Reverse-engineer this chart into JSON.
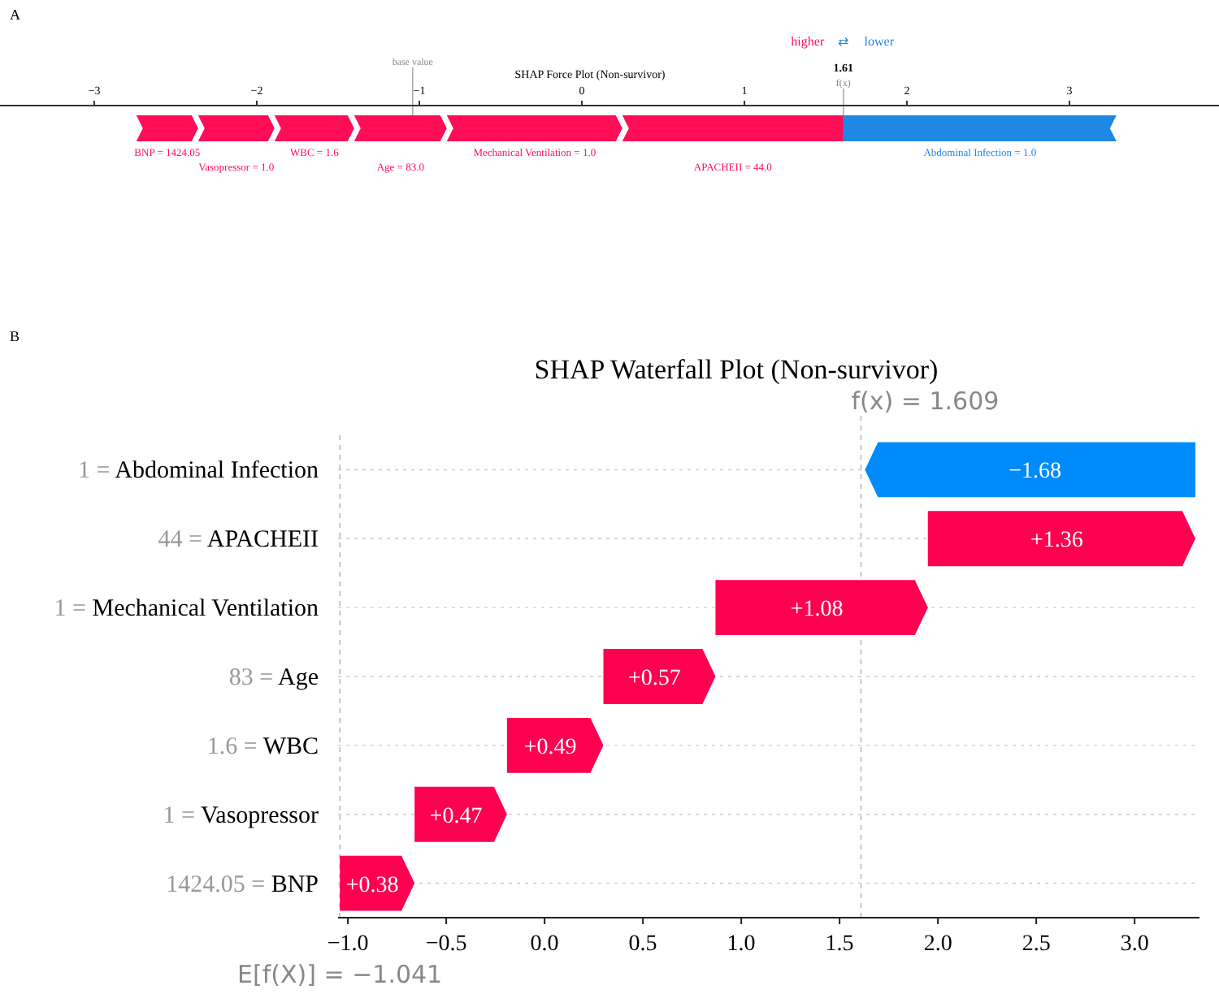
{
  "chart_data": [
    {
      "type": "bar",
      "orientation": "horizontal",
      "title": "SHAP Force Plot (Non-survivor)",
      "categories": [
        null
      ],
      "xlim": [
        -3.58,
        3.92
      ],
      "xticks": [
        {
          "value": -3,
          "label": "−3"
        },
        {
          "value": -2,
          "label": "−2"
        },
        {
          "value": -1,
          "label": "−1"
        },
        0,
        1,
        2,
        3
      ],
      "series": [
        {
          "name": "BNP = 1424.05",
          "color": "#ff0d57",
          "values": [
            0.38
          ],
          "base": [
            -2.741
          ]
        },
        {
          "name": "Vasopressor = 1.0",
          "color": "#ff0d57",
          "values": [
            0.47
          ],
          "base": [
            -2.361
          ]
        },
        {
          "name": "WBC = 1.6",
          "color": "#ff0d57",
          "values": [
            0.49
          ],
          "base": [
            -1.891
          ]
        },
        {
          "name": "Age = 83.0",
          "color": "#ff0d57",
          "values": [
            0.57
          ],
          "base": [
            -1.401
          ]
        },
        {
          "name": "Mechanical Ventilation = 1.0",
          "color": "#ff0d57",
          "values": [
            1.08
          ],
          "base": [
            -0.831
          ]
        },
        {
          "name": "APACHEII = 44.0",
          "color": "#ff0d57",
          "values": [
            1.36
          ],
          "base": [
            0.249
          ]
        },
        {
          "name": "Abdominal Infection = 1.0",
          "color": "#1e88e5",
          "values": [
            -1.68
          ],
          "base": [
            3.289
          ]
        }
      ],
      "ref_lines": [
        {
          "axis": "x",
          "value": -1.041,
          "label": "base value",
          "color": "#aaaaaa"
        },
        {
          "axis": "x",
          "value": 1.609,
          "label": "f(x)",
          "color": "#aaaaaa"
        }
      ],
      "annotations": [
        "A",
        "1.61",
        "higher",
        "⇄",
        "lower"
      ]
    },
    {
      "type": "bar",
      "orientation": "horizontal",
      "title": "SHAP Waterfall Plot (Non-survivor)",
      "categories": [
        "1 = Abdominal Infection",
        "44 = APACHEII",
        "1 = Mechanical Ventilation",
        "83 = Age",
        "1.6 = WBC",
        "1 = Vasopressor",
        "1424.05 = BNP"
      ],
      "values": [
        -1.68,
        1.36,
        1.08,
        0.57,
        0.49,
        0.47,
        0.38
      ],
      "base": [
        3.309,
        1.949,
        0.869,
        0.299,
        -0.191,
        -0.661,
        -1.041
      ],
      "colors": [
        "#008bfb",
        "#ff0051",
        "#ff0051",
        "#ff0051",
        "#ff0051",
        "#ff0051",
        "#ff0051"
      ],
      "value_labels": [
        "−1.68",
        "+1.36",
        "+1.08",
        "+0.57",
        "+0.49",
        "+0.47",
        "+0.38"
      ],
      "xlim": [
        -1.05,
        3.33
      ],
      "xticks": [
        {
          "value": -1,
          "label": "−1.0"
        },
        {
          "value": -0.5,
          "label": "−0.5"
        },
        {
          "value": 0,
          "label": "0.0"
        },
        {
          "value": 0.5,
          "label": "0.5"
        },
        {
          "value": 1,
          "label": "1.0"
        },
        {
          "value": 1.5,
          "label": "1.5"
        },
        {
          "value": 2,
          "label": "2.0"
        },
        {
          "value": 2.5,
          "label": "2.5"
        },
        {
          "value": 3,
          "label": "3.0"
        }
      ],
      "grid": "y",
      "ref_lines": [
        {
          "axis": "x",
          "value": 1.609,
          "label": "f(x) = 1.609",
          "color": "#bbbbbb",
          "line_style": "dashed"
        },
        {
          "axis": "x",
          "value": -1.041,
          "label": "E[f(X)] = −1.041",
          "color": "#bbbbbb",
          "line_style": "dashed"
        }
      ],
      "annotations": [
        "B"
      ]
    }
  ]
}
